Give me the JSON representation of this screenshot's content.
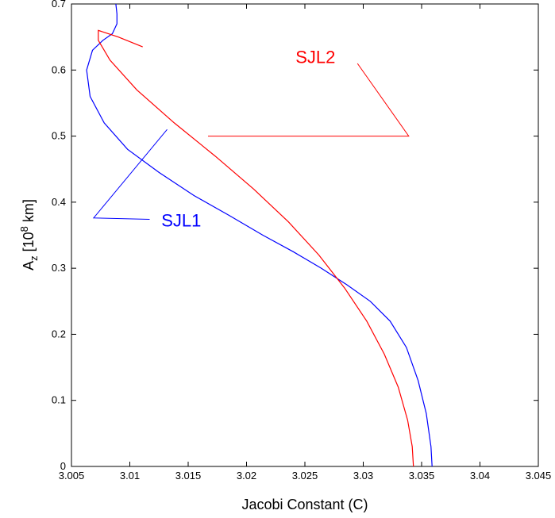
{
  "chart_data": {
    "type": "line",
    "xlabel": "Jacobi Constant (C)",
    "ylabel": {
      "base": "A",
      "sub": "z",
      "pre": " [10",
      "sup": "8",
      "post": " km]"
    },
    "xlim": [
      3.005,
      3.045
    ],
    "ylim": [
      0,
      0.7
    ],
    "xticks": [
      "3.005",
      "3.01",
      "3.015",
      "3.02",
      "3.025",
      "3.03",
      "3.035",
      "3.04",
      "3.045"
    ],
    "yticks": [
      "0",
      "0.1",
      "0.2",
      "0.3",
      "0.4",
      "0.5",
      "0.6",
      "0.7"
    ],
    "grid": false,
    "series": [
      {
        "name": "SJL1",
        "color": "#0000ff",
        "x": [
          3.0359,
          3.0358,
          3.0354,
          3.0347,
          3.0337,
          3.0323,
          3.0306,
          3.0286,
          3.0264,
          3.024,
          3.0214,
          3.0185,
          3.0155,
          3.0125,
          3.0098,
          3.0078,
          3.0066,
          3.0063,
          3.0068,
          3.0077,
          3.0085,
          3.0089,
          3.0089,
          3.0088
        ],
        "y": [
          0.0,
          0.03,
          0.08,
          0.13,
          0.18,
          0.22,
          0.25,
          0.275,
          0.3,
          0.325,
          0.35,
          0.38,
          0.41,
          0.445,
          0.48,
          0.52,
          0.56,
          0.6,
          0.63,
          0.645,
          0.655,
          0.67,
          0.685,
          0.7
        ]
      },
      {
        "name": "SJL2",
        "color": "#ff0000",
        "x": [
          3.0343,
          3.0342,
          3.0338,
          3.033,
          3.0318,
          3.0303,
          3.0284,
          3.0262,
          3.0236,
          3.0206,
          3.0173,
          3.0138,
          3.0106,
          3.0083,
          3.0073,
          3.0073,
          3.009,
          3.0111
        ],
        "y": [
          0.0,
          0.03,
          0.07,
          0.12,
          0.17,
          0.22,
          0.27,
          0.32,
          0.37,
          0.42,
          0.47,
          0.52,
          0.57,
          0.615,
          0.645,
          0.66,
          0.65,
          0.635
        ]
      }
    ],
    "annotations": [
      {
        "text": "SJL1",
        "color": "#0000ff",
        "x": 3.0127,
        "y": 0.373,
        "leader": [
          [
            3.0132,
            0.51
          ],
          [
            3.0069,
            0.376
          ],
          [
            3.0117,
            0.374
          ]
        ]
      },
      {
        "text": "SJL2",
        "color": "#ff0000",
        "x": 3.0242,
        "y": 0.62,
        "leader": [
          [
            3.0295,
            0.61
          ],
          [
            3.0339,
            0.5
          ],
          [
            3.0167,
            0.5
          ]
        ]
      }
    ]
  }
}
